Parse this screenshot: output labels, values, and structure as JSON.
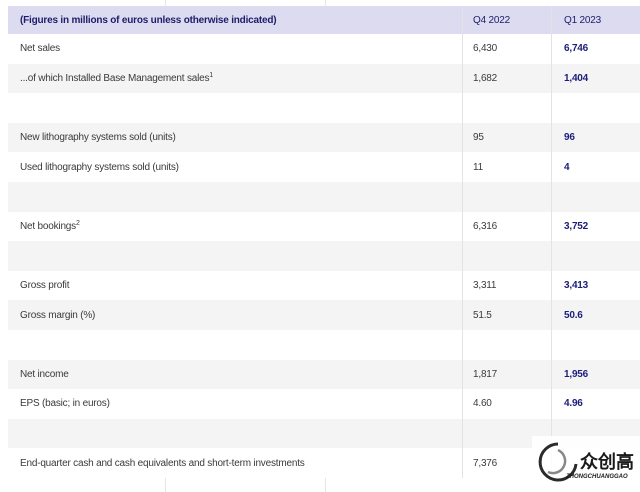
{
  "table": {
    "header": [
      "(Figures in millions of euros unless otherwise indicated)",
      "Q4 2022",
      "Q1 2023"
    ],
    "rows": [
      {
        "label": "Net sales",
        "q4": "6,430",
        "q1": "6,746"
      },
      {
        "label": "...of which Installed Base Management sales",
        "sup": "1",
        "q4": "1,682",
        "q1": "1,404"
      },
      null,
      {
        "label": "New lithography systems sold (units)",
        "q4": "95",
        "q1": "96"
      },
      {
        "label": "Used lithography systems sold (units)",
        "q4": "11",
        "q1": "4"
      },
      null,
      {
        "label": "Net bookings",
        "sup": "2",
        "q4": "6,316",
        "q1": "3,752"
      },
      null,
      {
        "label": "Gross profit",
        "q4": "3,311",
        "q1": "3,413"
      },
      {
        "label": "Gross margin (%)",
        "q4": "51.5",
        "q1": "50.6"
      },
      null,
      {
        "label": "Net income",
        "q4": "1,817",
        "q1": "1,956"
      },
      {
        "label": "EPS (basic; in euros)",
        "q4": "4.60",
        "q1": "4.96"
      },
      null,
      {
        "label": "End-quarter cash and cash equivalents and short-term investments",
        "q4": "7,376"
      }
    ]
  },
  "watermark": {
    "name": "众创高",
    "subtitle": "ZHONGCHUANGGAO"
  }
}
